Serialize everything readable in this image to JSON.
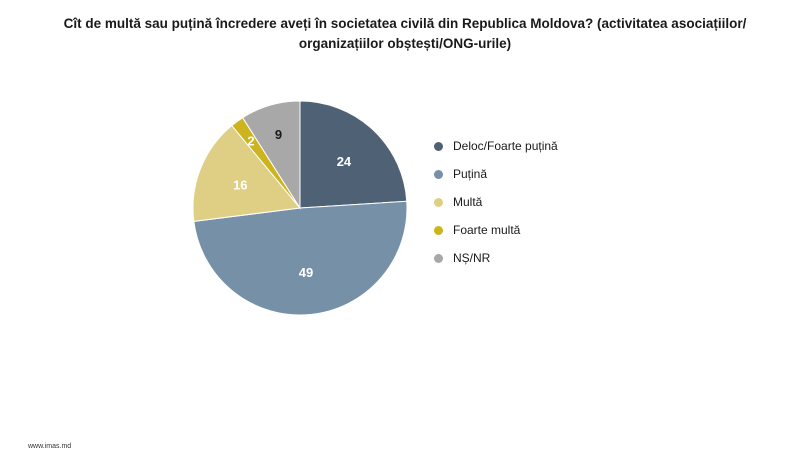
{
  "title": "Cît de multă sau puțină încredere aveți în societatea civilă din Republica Moldova? (activitatea asociațiilor/ organizațiilor obștești/ONG-urile)",
  "footer": "www.imas.md",
  "chart_data": {
    "type": "pie",
    "title": "Cît de multă sau puțină încredere aveți în societatea civilă din Republica Moldova? (activitatea asociațiilor/ organizațiilor obștești/ONG-urile)",
    "legend_position": "right",
    "slices": [
      {
        "label": "Deloc/Foarte puțină",
        "value": 24,
        "color": "#4f6175",
        "label_color": "#ffffff"
      },
      {
        "label": "Puțină",
        "value": 49,
        "color": "#7690a8",
        "label_color": "#ffffff"
      },
      {
        "label": "Multă",
        "value": 16,
        "color": "#dfcf84",
        "label_color": "#ffffff"
      },
      {
        "label": "Foarte multă",
        "value": 2,
        "color": "#cdb41f",
        "label_color": "#ffffff"
      },
      {
        "label": "NȘ/NR",
        "value": 9,
        "color": "#a8a8a8",
        "label_color": "#1a1a1a"
      }
    ]
  }
}
